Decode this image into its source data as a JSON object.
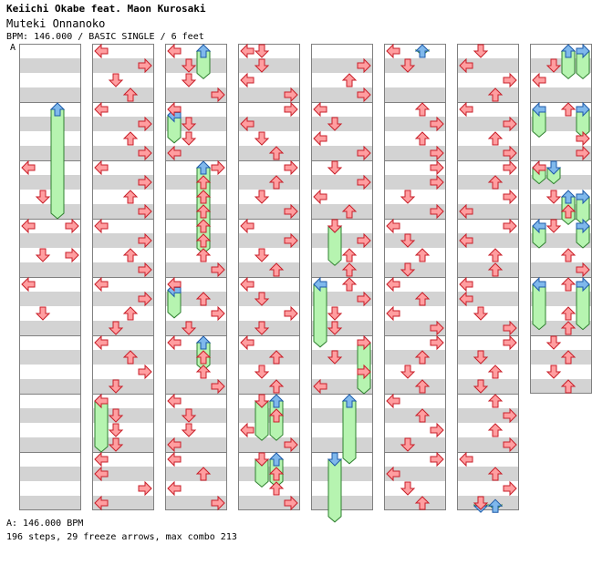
{
  "header": {
    "artist": "Keiichi Okabe feat. Maon Kurosaki",
    "title": "Muteki Onnanoko",
    "info": "BPM: 146.000 / BASIC SINGLE / 6 feet",
    "marker": "A"
  },
  "footer": {
    "bpm_change": "A: 146.000 BPM",
    "stats": "196 steps, 29 freeze arrows, max combo 213"
  },
  "legend_colors": {
    "quarter_arrow": "#ff9ea0",
    "eighth_arrow": "#7fb8ec",
    "freeze": "#b6f4b0",
    "stripe": "#d3d3d3"
  },
  "columns": [
    {
      "measures": 8,
      "notes": [
        [
          2,
          0,
          "L"
        ],
        [
          2,
          2,
          "D"
        ],
        [
          2,
          4,
          "R"
        ],
        [
          2,
          6,
          "R"
        ],
        [
          3,
          0,
          "L"
        ],
        [
          3,
          2,
          "D"
        ],
        [
          3,
          4,
          "L"
        ],
        [
          3,
          6,
          "D"
        ]
      ],
      "freezes": [
        [
          1.0,
          "U",
          2.0
        ]
      ]
    },
    {
      "measures": 8,
      "notes": [
        [
          0,
          0,
          "L"
        ],
        [
          0,
          1,
          "R"
        ],
        [
          0,
          2,
          "D"
        ],
        [
          0,
          3,
          "U"
        ],
        [
          1,
          0,
          "L"
        ],
        [
          1,
          1,
          "R"
        ],
        [
          1,
          2,
          "U"
        ],
        [
          1,
          3,
          "R"
        ],
        [
          2,
          0,
          "L"
        ],
        [
          2,
          1,
          "R"
        ],
        [
          2,
          2,
          "U"
        ],
        [
          2,
          3,
          "R"
        ],
        [
          3,
          0,
          "L"
        ],
        [
          3,
          1,
          "R"
        ],
        [
          3,
          2,
          "U"
        ],
        [
          3,
          3,
          "R"
        ],
        [
          4,
          0,
          "L"
        ],
        [
          4,
          1,
          "R"
        ],
        [
          4,
          2,
          "U"
        ],
        [
          4,
          3,
          "D"
        ],
        [
          5,
          0,
          "L"
        ],
        [
          5,
          1,
          "U"
        ],
        [
          5,
          2,
          "R"
        ],
        [
          5,
          3,
          "D"
        ],
        [
          6,
          0,
          "L"
        ],
        [
          6,
          1,
          "D"
        ],
        [
          6,
          2,
          "D"
        ],
        [
          6,
          3,
          "D"
        ],
        [
          7,
          0,
          "L"
        ],
        [
          7,
          1,
          "L"
        ],
        [
          7,
          2,
          "R"
        ],
        [
          7,
          3,
          "L"
        ]
      ],
      "freezes": [
        [
          6.0,
          "L",
          1.0
        ]
      ]
    },
    {
      "measures": 8,
      "notes": [
        [
          0,
          0,
          "L"
        ],
        [
          0,
          1,
          "D"
        ],
        [
          0,
          2,
          "D"
        ],
        [
          0,
          3,
          "R"
        ],
        [
          1,
          0,
          "L"
        ],
        [
          1,
          1,
          "D"
        ],
        [
          1,
          2,
          "D"
        ],
        [
          1,
          3,
          "L"
        ],
        [
          2,
          0,
          "R"
        ],
        [
          2,
          1,
          "U"
        ],
        [
          2,
          2,
          "U"
        ],
        [
          2,
          3,
          "U"
        ],
        [
          3,
          0,
          "U"
        ],
        [
          3,
          1,
          "U"
        ],
        [
          3,
          2,
          "U"
        ],
        [
          3,
          3,
          "R"
        ],
        [
          4,
          0,
          "L"
        ],
        [
          4,
          1,
          "U"
        ],
        [
          4,
          2,
          "R"
        ],
        [
          4,
          3,
          "D"
        ],
        [
          5,
          0,
          "L"
        ],
        [
          5,
          1,
          "U"
        ],
        [
          5,
          2,
          "U"
        ],
        [
          5,
          3,
          "R"
        ],
        [
          6,
          0,
          "L"
        ],
        [
          6,
          1,
          "D"
        ],
        [
          6,
          2,
          "D"
        ],
        [
          6,
          3,
          "L"
        ],
        [
          7,
          0,
          "L"
        ],
        [
          7,
          1,
          "U"
        ],
        [
          7,
          2,
          "L"
        ],
        [
          7,
          3,
          "R"
        ]
      ],
      "freezes": [
        [
          0.0,
          "U",
          0.6
        ],
        [
          1.1,
          "L",
          0.6
        ],
        [
          2.0,
          "U",
          1.6
        ],
        [
          4.1,
          "L",
          0.6
        ],
        [
          5.0,
          "U",
          0.6
        ]
      ]
    },
    {
      "measures": 8,
      "notes": [
        [
          0,
          0,
          "L"
        ],
        [
          0,
          0,
          "D"
        ],
        [
          0,
          1,
          "D"
        ],
        [
          0,
          2,
          "L"
        ],
        [
          0,
          3,
          "R"
        ],
        [
          1,
          0,
          "R"
        ],
        [
          1,
          1,
          "L"
        ],
        [
          1,
          2,
          "D"
        ],
        [
          1,
          3,
          "U"
        ],
        [
          2,
          0,
          "R"
        ],
        [
          2,
          1,
          "U"
        ],
        [
          2,
          2,
          "D"
        ],
        [
          2,
          3,
          "R"
        ],
        [
          3,
          0,
          "L"
        ],
        [
          3,
          1,
          "R"
        ],
        [
          3,
          2,
          "D"
        ],
        [
          3,
          3,
          "U"
        ],
        [
          4,
          0,
          "L"
        ],
        [
          4,
          1,
          "D"
        ],
        [
          4,
          2,
          "R"
        ],
        [
          4,
          3,
          "D"
        ],
        [
          5,
          0,
          "L"
        ],
        [
          5,
          1,
          "U"
        ],
        [
          5,
          2,
          "D"
        ],
        [
          5,
          3,
          "U"
        ],
        [
          6,
          0,
          "D"
        ],
        [
          6,
          1,
          "U"
        ],
        [
          6,
          2,
          "L"
        ],
        [
          6,
          3,
          "R"
        ],
        [
          7,
          0,
          "D"
        ],
        [
          7,
          1,
          "U"
        ],
        [
          7,
          2,
          "U"
        ],
        [
          7,
          3,
          "R"
        ]
      ],
      "freezes": [
        [
          6.0,
          "D",
          0.8
        ],
        [
          6.0,
          "U",
          0.8
        ],
        [
          7.0,
          "D",
          0.6
        ],
        [
          7.0,
          "U",
          0.6
        ]
      ]
    },
    {
      "measures": 8,
      "notes": [
        [
          0,
          1,
          "R"
        ],
        [
          0,
          2,
          "U"
        ],
        [
          0,
          3,
          "R"
        ],
        [
          1,
          0,
          "L"
        ],
        [
          1,
          1,
          "D"
        ],
        [
          1,
          2,
          "L"
        ],
        [
          1,
          3,
          "R"
        ],
        [
          2,
          0,
          "D"
        ],
        [
          2,
          1,
          "R"
        ],
        [
          2,
          2,
          "L"
        ],
        [
          2,
          3,
          "U"
        ],
        [
          3,
          0,
          "D"
        ],
        [
          3,
          1,
          "R"
        ],
        [
          3,
          2,
          "U"
        ],
        [
          3,
          3,
          "U"
        ],
        [
          4,
          0,
          "U"
        ],
        [
          4,
          1,
          "R"
        ],
        [
          4,
          2,
          "D"
        ],
        [
          4,
          3,
          "D"
        ],
        [
          5,
          0,
          "R"
        ],
        [
          5,
          1,
          "D"
        ],
        [
          5,
          2,
          "R"
        ],
        [
          5,
          3,
          "L"
        ]
      ],
      "freezes": [
        [
          3.0,
          "D",
          0.8
        ],
        [
          4.0,
          "L",
          1.2
        ],
        [
          5.0,
          "R",
          1.0
        ],
        [
          6.0,
          "U",
          1.2
        ],
        [
          7.0,
          "D",
          1.2
        ]
      ]
    },
    {
      "measures": 8,
      "notes": [
        [
          0,
          0,
          "L"
        ],
        [
          0,
          1,
          "D"
        ],
        [
          1,
          0,
          "U"
        ],
        [
          1,
          1,
          "R"
        ],
        [
          1,
          2,
          "U"
        ],
        [
          1,
          3,
          "R"
        ],
        [
          2,
          0,
          "R"
        ],
        [
          2,
          1,
          "R"
        ],
        [
          2,
          2,
          "D"
        ],
        [
          2,
          3,
          "R"
        ],
        [
          3,
          0,
          "L"
        ],
        [
          3,
          1,
          "D"
        ],
        [
          3,
          2,
          "U"
        ],
        [
          3,
          3,
          "D"
        ],
        [
          4,
          0,
          "L"
        ],
        [
          4,
          1,
          "U"
        ],
        [
          4,
          2,
          "L"
        ],
        [
          4,
          3,
          "R"
        ],
        [
          5,
          0,
          "R"
        ],
        [
          5,
          1,
          "U"
        ],
        [
          5,
          2,
          "D"
        ],
        [
          5,
          3,
          "U"
        ],
        [
          6,
          0,
          "L"
        ],
        [
          6,
          1,
          "U"
        ],
        [
          6,
          2,
          "R"
        ],
        [
          6,
          3,
          "D"
        ],
        [
          7,
          0,
          "R"
        ],
        [
          7,
          1,
          "L"
        ],
        [
          7,
          2,
          "D"
        ],
        [
          7,
          3,
          "U"
        ]
      ],
      "freezes": [
        [
          0.0,
          "U",
          0.2
        ]
      ]
    },
    {
      "measures": 8,
      "notes": [
        [
          0,
          0,
          "D"
        ],
        [
          0,
          1,
          "L"
        ],
        [
          0,
          2,
          "R"
        ],
        [
          0,
          3,
          "U"
        ],
        [
          1,
          0,
          "L"
        ],
        [
          1,
          1,
          "R"
        ],
        [
          1,
          2,
          "U"
        ],
        [
          1,
          3,
          "R"
        ],
        [
          2,
          0,
          "R"
        ],
        [
          2,
          1,
          "U"
        ],
        [
          2,
          2,
          "R"
        ],
        [
          2,
          3,
          "L"
        ],
        [
          3,
          0,
          "R"
        ],
        [
          3,
          1,
          "L"
        ],
        [
          3,
          2,
          "U"
        ],
        [
          3,
          3,
          "U"
        ],
        [
          4,
          0,
          "L"
        ],
        [
          4,
          1,
          "L"
        ],
        [
          4,
          2,
          "D"
        ],
        [
          4,
          3,
          "R"
        ],
        [
          5,
          0,
          "R"
        ],
        [
          5,
          1,
          "D"
        ],
        [
          5,
          2,
          "U"
        ],
        [
          5,
          3,
          "D"
        ],
        [
          6,
          0,
          "U"
        ],
        [
          6,
          1,
          "R"
        ],
        [
          6,
          2,
          "U"
        ],
        [
          6,
          3,
          "R"
        ],
        [
          7,
          0,
          "L"
        ],
        [
          7,
          1,
          "U"
        ],
        [
          7,
          2,
          "R"
        ],
        [
          7,
          3,
          "D"
        ]
      ],
      "freezes": [
        [
          7.8,
          "D",
          0.2
        ],
        [
          7.8,
          "U",
          0.2
        ]
      ]
    },
    {
      "measures": 6,
      "notes": [
        [
          0,
          1,
          "D"
        ],
        [
          0,
          2,
          "L"
        ],
        [
          1,
          0,
          "U"
        ],
        [
          1,
          2,
          "R"
        ],
        [
          1,
          3,
          "R"
        ],
        [
          2,
          0,
          "L"
        ],
        [
          2,
          2,
          "D"
        ],
        [
          2,
          3,
          "U"
        ],
        [
          3,
          0,
          "D"
        ],
        [
          3,
          2,
          "U"
        ],
        [
          3,
          3,
          "R"
        ],
        [
          4,
          0,
          "U"
        ],
        [
          4,
          2,
          "U"
        ],
        [
          4,
          3,
          "U"
        ],
        [
          5,
          0,
          "D"
        ],
        [
          5,
          1,
          "U"
        ],
        [
          5,
          2,
          "D"
        ],
        [
          5,
          3,
          "U"
        ]
      ],
      "freezes": [
        [
          0.0,
          "U",
          0.6
        ],
        [
          0.0,
          "R",
          0.6
        ],
        [
          1.0,
          "L",
          0.6
        ],
        [
          1.0,
          "R",
          0.6
        ],
        [
          2.0,
          "L",
          0.4
        ],
        [
          2.0,
          "D",
          0.4
        ],
        [
          2.5,
          "U",
          0.6
        ],
        [
          2.5,
          "R",
          0.6
        ],
        [
          3.0,
          "L",
          0.5
        ],
        [
          3.0,
          "R",
          0.5
        ],
        [
          4.0,
          "L",
          0.9
        ],
        [
          4.0,
          "R",
          0.9
        ]
      ]
    }
  ]
}
